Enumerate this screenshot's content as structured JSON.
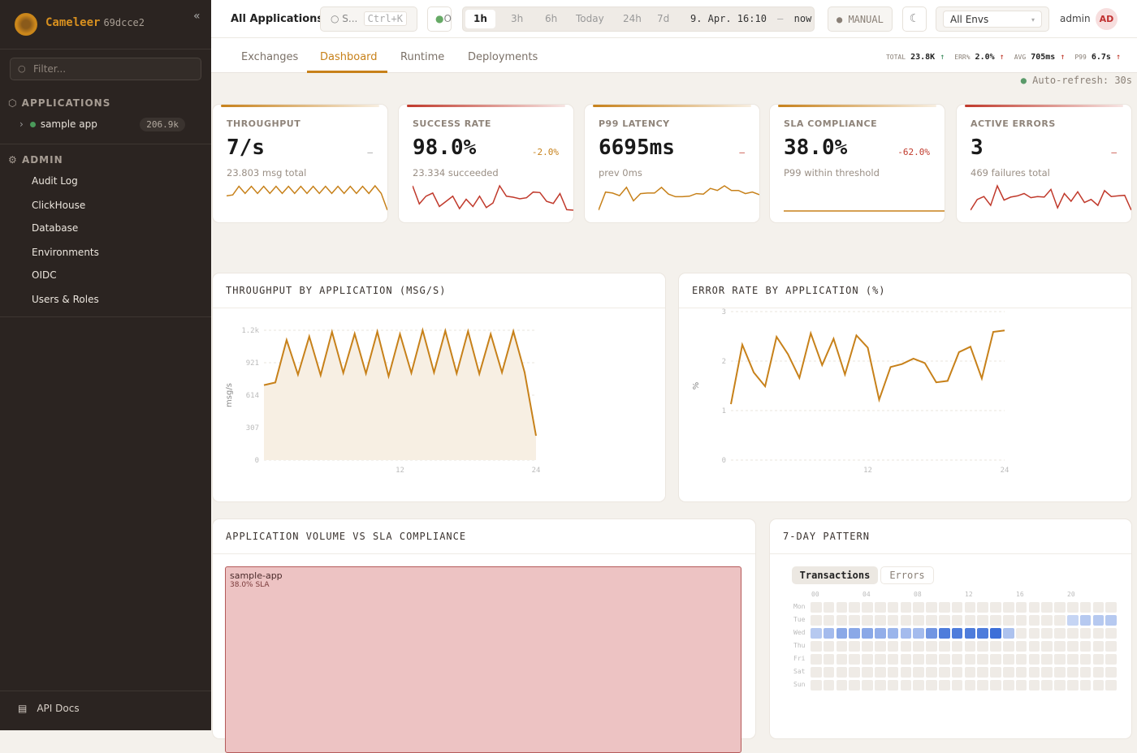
{
  "sidebar": {
    "brand": "Cameleer",
    "version": "69dcce2",
    "collapse_icon": "«",
    "filter_placeholder": "Filter...",
    "applications_label": "APPLICATIONS",
    "apps": [
      {
        "name": "sample app",
        "count": "206.9k",
        "status_color": "#4a9a5a"
      }
    ],
    "admin_label": "ADMIN",
    "admin_items": [
      "Audit Log",
      "ClickHouse",
      "Database",
      "Environments",
      "OIDC",
      "Users & Roles"
    ],
    "api_docs": "API Docs"
  },
  "topbar": {
    "title": "All Applications",
    "search_placeholder": "S...",
    "search_shortcut": "Ctrl+K",
    "status": "O",
    "ranges": [
      "1h",
      "3h",
      "6h",
      "Today",
      "24h",
      "7d"
    ],
    "active_range": "1h",
    "range_from": "9. Apr. 16:10",
    "range_sep": "–",
    "range_to": "now",
    "refresh_mode": "MANUAL",
    "env": "All Envs",
    "user": "admin",
    "avatar": "AD"
  },
  "subnav": {
    "tabs": [
      "Exchanges",
      "Dashboard",
      "Runtime",
      "Deployments"
    ],
    "active": "Dashboard",
    "stats": [
      {
        "label": "TOTAL",
        "value": "23.8K",
        "arrow": "↑",
        "color": "#3a8a5a"
      },
      {
        "label": "ERR%",
        "value": "2.0%",
        "arrow": "↑",
        "color": "#c0392b"
      },
      {
        "label": "AVG",
        "value": "705ms",
        "arrow": "↑",
        "color": "#c0392b"
      },
      {
        "label": "P99",
        "value": "6.7s",
        "arrow": "↑",
        "color": "#c0392b"
      }
    ]
  },
  "auto_refresh": "Auto-refresh: 30s",
  "kpis": [
    {
      "label": "THROUGHPUT",
      "value": "7/s",
      "delta": "–",
      "delta_color": "#999",
      "sub": "23.803 msg total",
      "color": "#c7811a",
      "spark": [
        3,
        3.2,
        5,
        3.5,
        5,
        3.5,
        5,
        3.5,
        5,
        3.5,
        5,
        3.5,
        5,
        3.5,
        5,
        3.5,
        5,
        3.5,
        5,
        3.5,
        5,
        3.5,
        5,
        3.5,
        5.1,
        3.5,
        0
      ]
    },
    {
      "label": "SUCCESS RATE",
      "value": "98.0%",
      "delta": "-2.0%",
      "delta_color": "#c7811a",
      "sub": "23.334 succeeded",
      "color": "#c0392b",
      "spark": [
        5,
        1.5,
        3,
        3.6,
        1,
        2,
        3,
        0.6,
        2.4,
        1,
        3,
        0.8,
        1.7,
        5,
        3,
        2.8,
        2.5,
        2.7,
        3.8,
        3.7,
        2,
        1.6,
        3.5,
        0.4,
        0.3
      ]
    },
    {
      "label": "P99 LATENCY",
      "value": "6695ms",
      "delta": "–",
      "delta_color": "#c0392b",
      "sub": "prev 0ms",
      "color": "#c7811a",
      "spark": [
        0,
        3.5,
        3.3,
        2.8,
        4.4,
        1.8,
        3.2,
        3.3,
        3.3,
        4.4,
        3.1,
        2.6,
        2.6,
        2.7,
        3.2,
        3.1,
        4.2,
        3.8,
        4.7,
        3.8,
        3.8,
        3.2,
        3.5,
        3
      ]
    },
    {
      "label": "SLA COMPLIANCE",
      "value": "38.0%",
      "delta": "-62.0%",
      "delta_color": "#c0392b",
      "sub": "P99 within threshold",
      "color": "#c7811a",
      "spark": [
        1,
        1,
        1,
        1,
        1,
        1,
        1,
        1,
        1,
        1
      ]
    },
    {
      "label": "ACTIVE ERRORS",
      "value": "3",
      "delta": "–",
      "delta_color": "#c0392b",
      "sub": "469 failures total",
      "color": "#c0392b",
      "spark": [
        0,
        1.8,
        2.3,
        0.8,
        4.1,
        1.7,
        2.2,
        2.4,
        2.8,
        2.1,
        2.3,
        2.2,
        3.5,
        0.4,
        2.8,
        1.5,
        3.1,
        1.3,
        1.8,
        0.8,
        3.3,
        2.3,
        2.4,
        2.5,
        0
      ]
    }
  ],
  "chart_data": [
    {
      "type": "area",
      "title": "THROUGHPUT BY APPLICATION (MSG/S)",
      "ylabel": "msg/s",
      "xlabel": "",
      "xlim": [
        0,
        24
      ],
      "ylim": [
        0,
        1228
      ],
      "yticks": [
        "0",
        "307",
        "614",
        "921",
        "1.2k"
      ],
      "xticks": [
        "12",
        "24"
      ],
      "grid": true,
      "color": "#c7811a",
      "x": [
        0,
        1,
        2,
        3,
        4,
        5,
        6,
        7,
        8,
        9,
        10,
        11,
        12,
        13,
        14,
        15,
        16,
        17,
        18,
        19,
        20,
        21,
        22,
        23,
        24
      ],
      "values": [
        709,
        734,
        1136,
        808,
        1169,
        803,
        1213,
        824,
        1195,
        819,
        1215,
        793,
        1192,
        824,
        1228,
        829,
        1223,
        819,
        1218,
        816,
        1192,
        829,
        1218,
        829,
        230
      ]
    },
    {
      "type": "line",
      "title": "ERROR RATE BY APPLICATION (%)",
      "ylabel": "%",
      "xlabel": "",
      "xlim": [
        0,
        24
      ],
      "ylim": [
        0,
        3
      ],
      "yticks": [
        "0",
        "1",
        "2",
        "3"
      ],
      "xticks": [
        "12",
        "24"
      ],
      "grid": true,
      "color": "#c7811a",
      "x": [
        0,
        1,
        2,
        3,
        4,
        5,
        6,
        7,
        8,
        9,
        10,
        11,
        12,
        13,
        14,
        15,
        16,
        17,
        18,
        19,
        20,
        21,
        22,
        23,
        24
      ],
      "values": [
        1.13,
        2.33,
        1.77,
        1.49,
        2.49,
        2.14,
        1.66,
        2.56,
        1.92,
        2.45,
        1.73,
        2.52,
        2.27,
        1.22,
        1.88,
        1.94,
        2.05,
        1.96,
        1.57,
        1.6,
        2.18,
        2.29,
        1.65,
        2.59,
        2.62
      ]
    },
    {
      "type": "treemap",
      "title": "APPLICATION VOLUME VS SLA COMPLIANCE",
      "items": [
        {
          "name": "sample-app",
          "label": "38.0% SLA",
          "sla": 38.0
        }
      ]
    },
    {
      "type": "heatmap",
      "title": "7-DAY PATTERN",
      "tabs": [
        "Transactions",
        "Errors"
      ],
      "active_tab": "Transactions",
      "rows": [
        "Mon",
        "Tue",
        "Wed",
        "Thu",
        "Fri",
        "Sat",
        "Sun"
      ],
      "col_labels": [
        "00",
        "04",
        "08",
        "12",
        "16",
        "20"
      ],
      "cells": {
        "Tue": {
          "20": 0.15,
          "21": 0.25,
          "22": 0.25,
          "23": 0.25
        },
        "Wed": {
          "0": 0.25,
          "1": 0.35,
          "2": 0.5,
          "3": 0.5,
          "4": 0.5,
          "5": 0.45,
          "6": 0.4,
          "7": 0.35,
          "8": 0.35,
          "9": 0.65,
          "10": 0.85,
          "11": 0.85,
          "12": 0.85,
          "13": 0.85,
          "14": 0.95,
          "15": 0.3
        }
      }
    }
  ]
}
